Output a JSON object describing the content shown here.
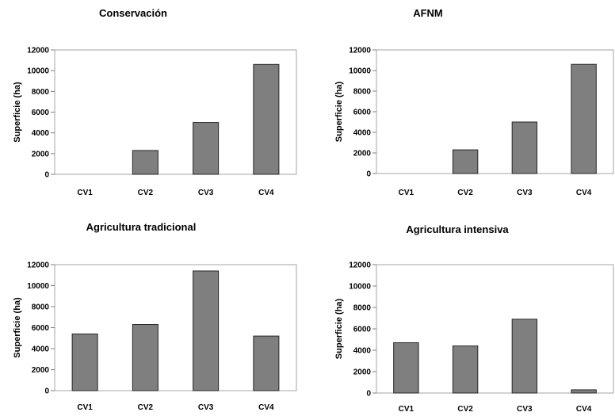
{
  "chart_data": [
    {
      "type": "bar",
      "title": "Conservación",
      "ylabel": "Superficie (ha)",
      "xlabel": "",
      "categories": [
        "CV1",
        "CV2",
        "CV3",
        "CV4"
      ],
      "values": [
        0,
        2300,
        5000,
        10600
      ],
      "ylim": [
        0,
        12000
      ],
      "yticks": [
        0,
        2000,
        4000,
        6000,
        8000,
        10000,
        12000
      ],
      "grid": false,
      "legend": "none",
      "bar_color": "#7f7f7f"
    },
    {
      "type": "bar",
      "title": "AFNM",
      "ylabel": "Superficie (ha)",
      "xlabel": "",
      "categories": [
        "CV1",
        "CV2",
        "CV3",
        "CV4"
      ],
      "values": [
        0,
        2300,
        5000,
        10600
      ],
      "ylim": [
        0,
        12000
      ],
      "yticks": [
        0,
        2000,
        4000,
        6000,
        8000,
        10000,
        12000
      ],
      "grid": false,
      "legend": "none",
      "bar_color": "#7f7f7f"
    },
    {
      "type": "bar",
      "title": "Agricultura tradicional",
      "ylabel": "Superficie (ha)",
      "xlabel": "",
      "categories": [
        "CV1",
        "CV2",
        "CV3",
        "CV4"
      ],
      "values": [
        5400,
        6300,
        11400,
        5200
      ],
      "ylim": [
        0,
        12000
      ],
      "yticks": [
        0,
        2000,
        4000,
        6000,
        8000,
        10000,
        12000
      ],
      "grid": false,
      "legend": "none",
      "bar_color": "#7f7f7f"
    },
    {
      "type": "bar",
      "title": "Agricultura intensiva",
      "ylabel": "Superficie (ha)",
      "xlabel": "",
      "categories": [
        "CV1",
        "CV2",
        "CV3",
        "CV4"
      ],
      "values": [
        4700,
        4400,
        6900,
        300
      ],
      "ylim": [
        0,
        12000
      ],
      "yticks": [
        0,
        2000,
        4000,
        6000,
        8000,
        10000,
        12000
      ],
      "grid": false,
      "legend": "none",
      "bar_color": "#7f7f7f"
    }
  ]
}
